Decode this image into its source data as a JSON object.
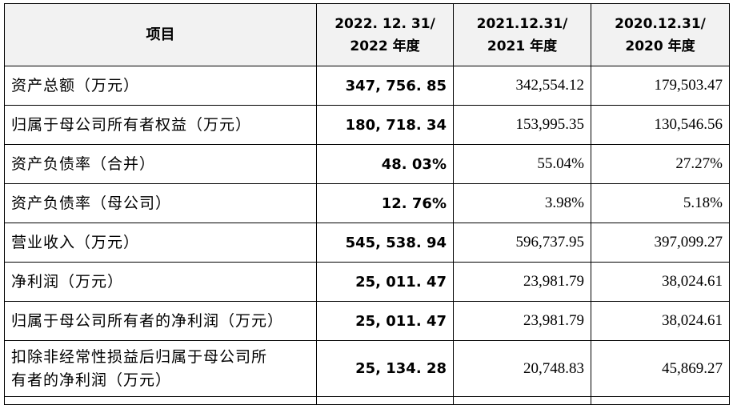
{
  "table": {
    "headers": {
      "item": "项目",
      "col2022_line1": "2022. 12. 31/",
      "col2022_line2": "2022 年度",
      "col2021_line1": "2021.12.31/",
      "col2021_line2": "2021 年度",
      "col2020_line1": "2020.12.31/",
      "col2020_line2": "2020 年度"
    },
    "rows": [
      {
        "label": "资产总额（万元）",
        "v2022": "347, 756. 85",
        "v2021": "342,554.12",
        "v2020": "179,503.47"
      },
      {
        "label": "归属于母公司所有者权益（万元）",
        "v2022": "180, 718. 34",
        "v2021": "153,995.35",
        "v2020": "130,546.56"
      },
      {
        "label": "资产负债率（合并）",
        "v2022": "48. 03%",
        "v2021": "55.04%",
        "v2020": "27.27%"
      },
      {
        "label": "资产负债率（母公司）",
        "v2022": "12. 76%",
        "v2021": "3.98%",
        "v2020": "5.18%"
      },
      {
        "label": "营业收入（万元）",
        "v2022": "545, 538. 94",
        "v2021": "596,737.95",
        "v2020": "397,099.27"
      },
      {
        "label": "净利润（万元）",
        "v2022": "25, 011. 47",
        "v2021": "23,981.79",
        "v2020": "38,024.61"
      },
      {
        "label": "归属于母公司所有者的净利润（万元）",
        "v2022": "25, 011. 47",
        "v2021": "23,981.79",
        "v2020": "38,024.61"
      },
      {
        "label_line1": "扣除非经常性损益后归属于母公司所",
        "label_line2": "有者的净利润（万元）",
        "v2022": "25, 134. 28",
        "v2021": "20,748.83",
        "v2020": "45,869.27"
      }
    ]
  }
}
